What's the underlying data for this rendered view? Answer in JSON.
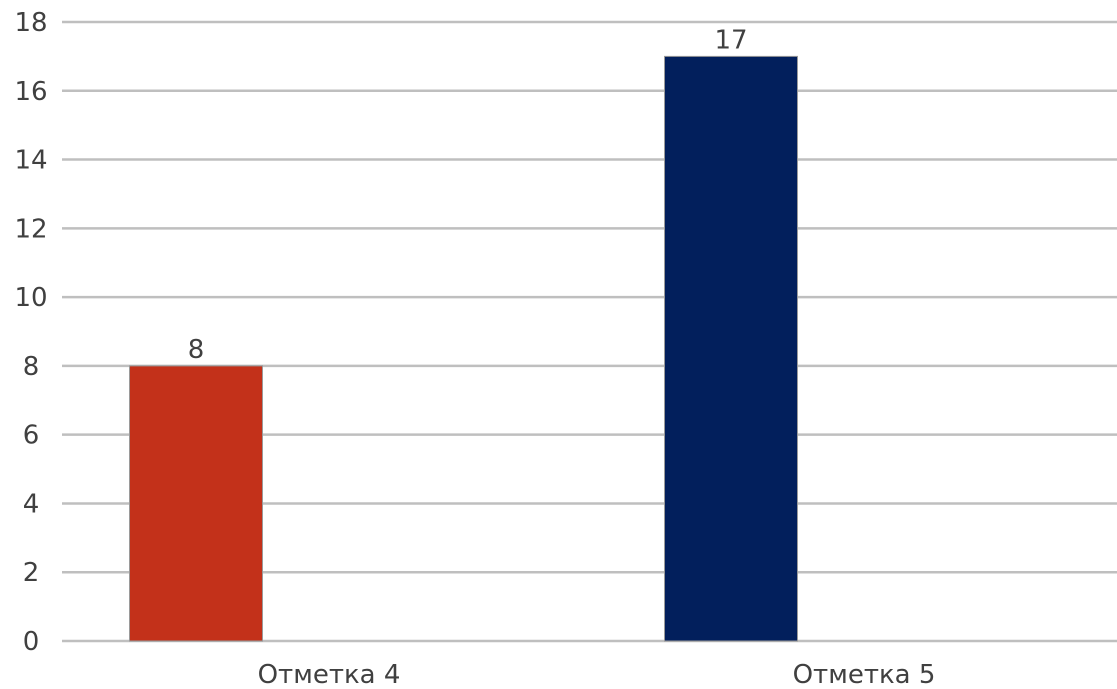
{
  "chart_data": {
    "type": "bar",
    "categories": [
      "Отметка 4",
      "Отметка 5"
    ],
    "values": [
      8,
      17
    ],
    "colors": [
      "#c3311a",
      "#021f5c"
    ],
    "ylim": [
      0,
      18
    ],
    "yticks": [
      0,
      2,
      4,
      6,
      8,
      10,
      12,
      14,
      16,
      18
    ],
    "data_labels": [
      "8",
      "17"
    ],
    "grid": true,
    "legend": "none"
  }
}
